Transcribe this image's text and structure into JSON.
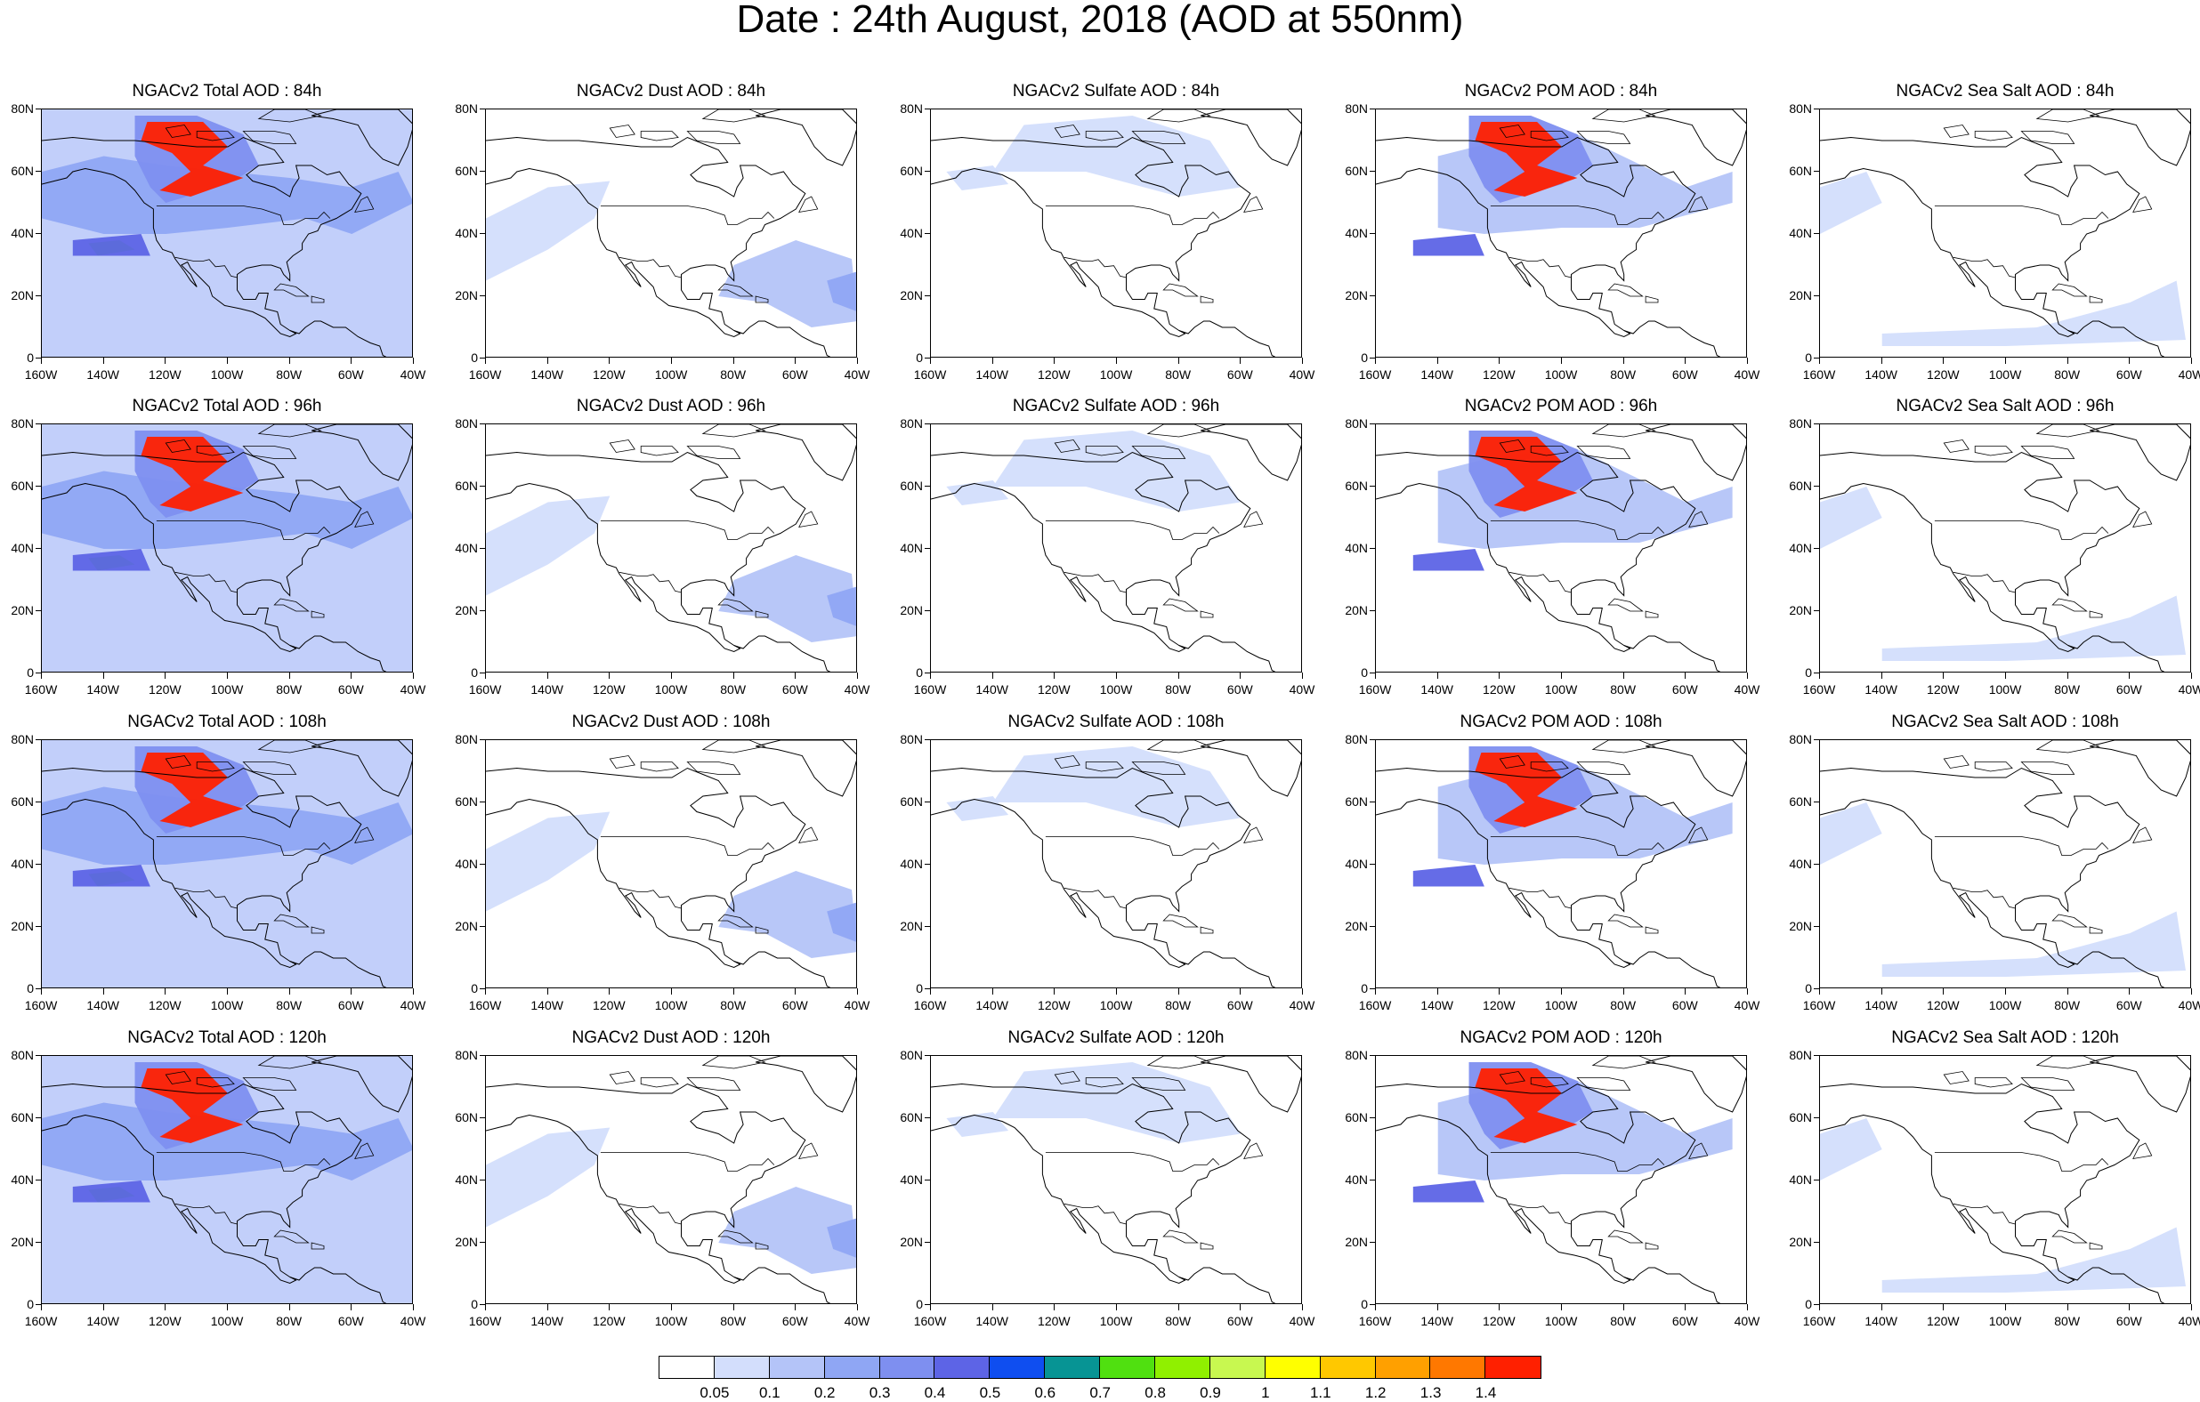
{
  "title": "Date : 24th August, 2018 (AOD at 550nm)",
  "lat_ticks": [
    "80N",
    "60N",
    "40N",
    "20N",
    "0"
  ],
  "lon_ticks": [
    "160W",
    "140W",
    "120W",
    "100W",
    "80W",
    "60W",
    "40W"
  ],
  "rows": [
    {
      "hour": "84h",
      "titles": [
        "NGACv2 Total AOD : 84h",
        "NGACv2 Dust AOD : 84h",
        "NGACv2 Sulfate AOD : 84h",
        "NGACv2 POM AOD : 84h",
        "NGACv2 Sea Salt AOD : 84h"
      ]
    },
    {
      "hour": "96h",
      "titles": [
        "NGACv2 Total AOD : 96h",
        "NGACv2 Dust AOD : 96h",
        "NGACv2 Sulfate AOD : 96h",
        "NGACv2 POM AOD : 96h",
        "NGACv2 Sea Salt AOD : 96h"
      ]
    },
    {
      "hour": "108h",
      "titles": [
        "NGACv2 Total AOD : 108h",
        "NGACv2 Dust AOD : 108h",
        "NGACv2 Sulfate AOD : 108h",
        "NGACv2 POM AOD : 108h",
        "NGACv2 Sea Salt AOD : 108h"
      ]
    },
    {
      "hour": "120h",
      "titles": [
        "NGACv2 Total AOD : 120h",
        "NGACv2 Dust AOD : 120h",
        "NGACv2 Sulfate AOD : 120h",
        "NGACv2 POM AOD : 120h",
        "NGACv2 Sea Salt  AOD : 120h"
      ]
    }
  ],
  "colorbar": {
    "labels": [
      "0.05",
      "0.1",
      "0.2",
      "0.3",
      "0.4",
      "0.5",
      "0.6",
      "0.7",
      "0.8",
      "0.9",
      "1",
      "1.1",
      "1.2",
      "1.3",
      "1.4"
    ],
    "colors": [
      "#ffffff",
      "#d3defc",
      "#b4c4f8",
      "#8fa6f4",
      "#7e8ff0",
      "#5d64e6",
      "#0f4ef0",
      "#079494",
      "#50e010",
      "#90f000",
      "#c8f850",
      "#ffff00",
      "#ffc800",
      "#ffa000",
      "#ff7800",
      "#ff2000"
    ]
  },
  "fields": {
    "total": {
      "bg": "#c2cffa",
      "hot": "#ff2000",
      "mid": "#5d64e6"
    },
    "dust": {
      "bg": "#ffffff",
      "hot": "#8fa6f4",
      "mid": "#c2cffa"
    },
    "sulfate": {
      "bg": "#ffffff",
      "hot": "#b4c4f8",
      "mid": "#d3defc"
    },
    "pom": {
      "bg": "#ffffff",
      "hot": "#ff2000",
      "mid": "#5d64e6"
    },
    "seasalt": {
      "bg": "#ffffff",
      "hot": "#b4c4f8",
      "mid": "#d3defc"
    }
  }
}
